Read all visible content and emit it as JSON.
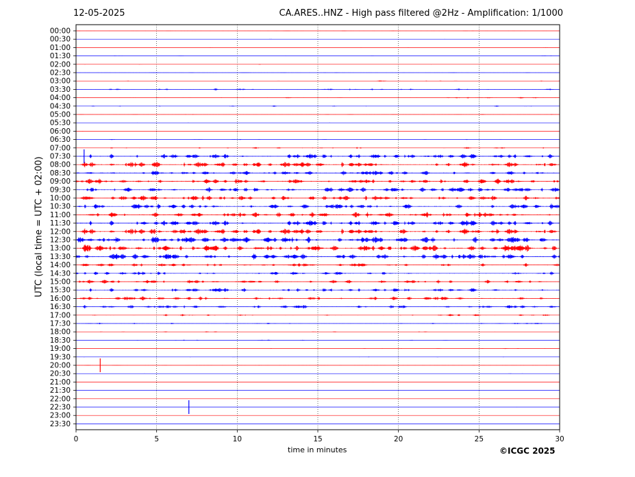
{
  "header": {
    "date": "12-05-2025",
    "title": "CA.ARES..HNZ - High pass filtered @2Hz - Amplification: 1/1000"
  },
  "footer": {
    "copyright": "©ICGC 2025"
  },
  "chart_data": {
    "type": "line",
    "title": "CA.ARES..HNZ - High pass filtered @2Hz - Amplification: 1/1000",
    "xlabel": "time in minutes",
    "ylabel": "UTC (local time = UTC + 02:00)",
    "xlim": [
      0,
      30
    ],
    "x_ticks": [
      0,
      5,
      10,
      15,
      20,
      25,
      30
    ],
    "grid": "vertical dotted lines at 5-minute intervals",
    "series_colors": {
      "even_rows": "#ff0000",
      "odd_rows": "#0000ff"
    },
    "rows": [
      "00:00",
      "00:30",
      "01:00",
      "01:30",
      "02:00",
      "02:30",
      "03:00",
      "03:30",
      "04:00",
      "04:30",
      "05:00",
      "05:30",
      "06:00",
      "06:30",
      "07:00",
      "07:30",
      "08:00",
      "08:30",
      "09:00",
      "09:30",
      "10:00",
      "10:30",
      "11:00",
      "11:30",
      "12:00",
      "12:30",
      "13:00",
      "13:30",
      "14:00",
      "14:30",
      "15:00",
      "15:30",
      "16:00",
      "16:30",
      "17:00",
      "17:30",
      "18:00",
      "18:30",
      "19:00",
      "19:30",
      "20:00",
      "20:30",
      "21:00",
      "21:30",
      "22:00",
      "22:30",
      "23:00",
      "23:30"
    ],
    "activity_level": [
      0.06,
      0.05,
      0.06,
      0.07,
      0.08,
      0.08,
      0.12,
      0.2,
      0.14,
      0.13,
      0.1,
      0.07,
      0.05,
      0.1,
      0.18,
      0.55,
      0.6,
      0.5,
      0.58,
      0.55,
      0.55,
      0.58,
      0.6,
      0.62,
      0.65,
      0.72,
      0.75,
      0.62,
      0.4,
      0.38,
      0.42,
      0.45,
      0.42,
      0.38,
      0.22,
      0.18,
      0.12,
      0.1,
      0.09,
      0.08,
      0.06,
      0.07,
      0.03,
      0.03,
      0.02,
      0.02,
      0.02,
      0.02
    ],
    "annotations": [
      {
        "row": "07:30",
        "x": 0.5,
        "note": "large spike"
      },
      {
        "row": "20:00",
        "x": 1.5,
        "note": "spike"
      },
      {
        "row": "22:30",
        "x": 7.0,
        "note": "spike"
      }
    ]
  }
}
